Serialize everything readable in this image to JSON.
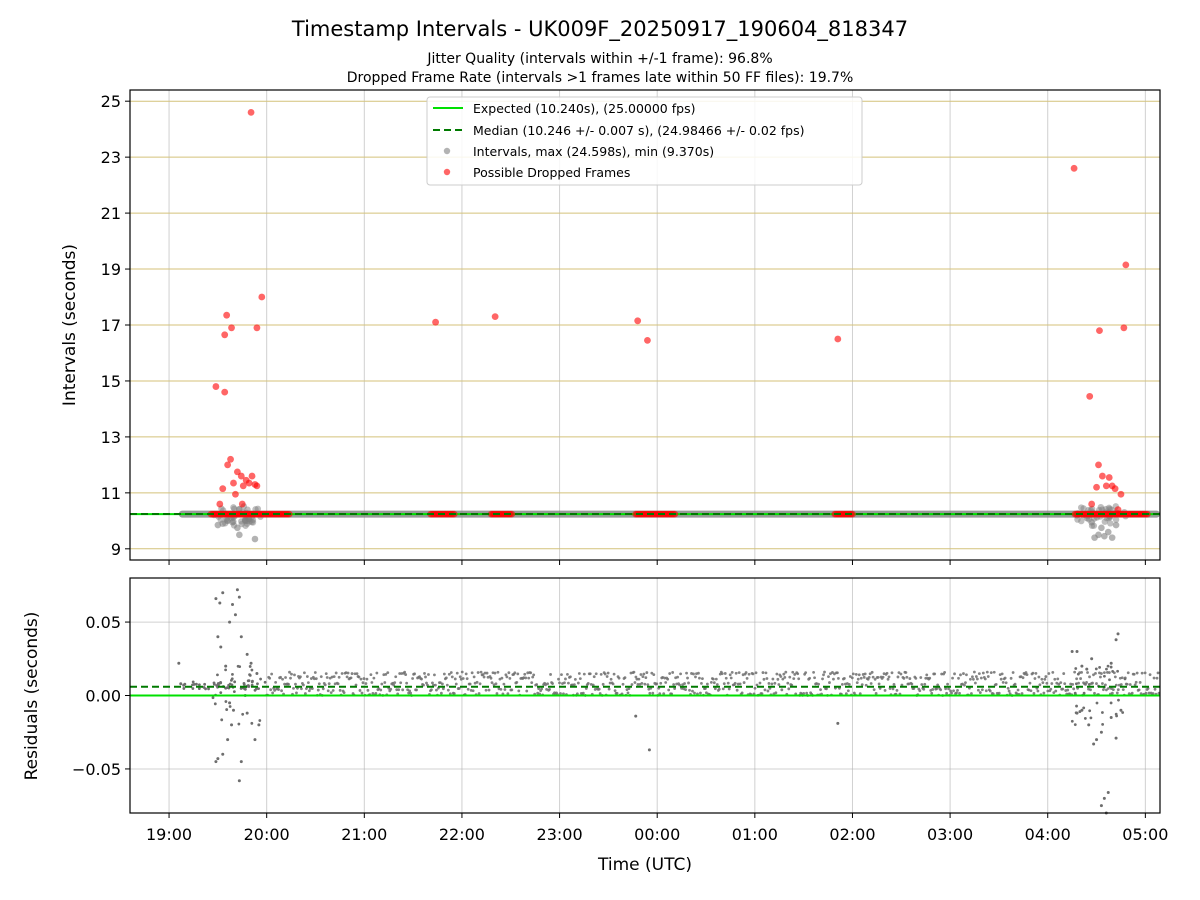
{
  "chart_data": {
    "title": "Timestamp Intervals - UK009F_20250917_190604_818347",
    "subtitle_lines": [
      "Jitter Quality (intervals within +/-1 frame): 96.8%",
      "Dropped Frame Rate (intervals >1 frames late within 50 FF files): 19.7%"
    ],
    "xlabel": "Time (UTC)",
    "x_tick_labels": [
      "19:00",
      "20:00",
      "21:00",
      "22:00",
      "23:00",
      "00:00",
      "01:00",
      "02:00",
      "03:00",
      "04:00",
      "05:00"
    ],
    "top_panel": {
      "type": "scatter",
      "ylabel": "Intervals (seconds)",
      "ylim": [
        8.6,
        25.4
      ],
      "y_ticks": [
        9,
        11,
        13,
        15,
        17,
        19,
        21,
        23,
        25
      ],
      "y_tick_labels": [
        "9",
        "11",
        "13",
        "15",
        "17",
        "19",
        "21",
        "23",
        "25"
      ],
      "horizontal_grid_color": "#d4c27a",
      "vertical_grid": true,
      "legend_position": "top-center",
      "legend": [
        {
          "label": "Expected (10.240s), (25.00000 fps)",
          "style": "solid-line",
          "color": "#00e000"
        },
        {
          "label": "Median (10.246 +/- 0.007 s), (24.98466 +/- 0.02 fps)",
          "style": "dashed-line",
          "color": "#007a00"
        },
        {
          "label": "Intervals, max (24.598s), min (9.370s)",
          "style": "marker",
          "color": "#808080"
        },
        {
          "label": "Possible Dropped Frames",
          "style": "marker",
          "color": "#ff0000"
        }
      ],
      "expected_value": 10.24,
      "median_value": 10.246,
      "normal_band_hours": [
        [
          19.1,
          29.15
        ]
      ],
      "normal_band_value": 10.24,
      "dropped_clusters": [
        {
          "x_range": [
            19.43,
            20.23
          ],
          "y": 10.24
        },
        {
          "x_range": [
            21.68,
            21.92
          ],
          "y": 10.24
        },
        {
          "x_range": [
            22.3,
            22.51
          ],
          "y": 10.24
        },
        {
          "x_range": [
            23.78,
            24.18
          ],
          "y": 10.24
        },
        {
          "x_range": [
            25.82,
            26.0
          ],
          "y": 10.24
        },
        {
          "x_range": [
            28.28,
            29.02
          ],
          "y": 10.24
        }
      ],
      "dropped_points": [
        {
          "x": 19.48,
          "y": 14.8
        },
        {
          "x": 19.57,
          "y": 14.6
        },
        {
          "x": 19.57,
          "y": 16.65
        },
        {
          "x": 19.59,
          "y": 17.35
        },
        {
          "x": 19.64,
          "y": 16.9
        },
        {
          "x": 19.84,
          "y": 24.6
        },
        {
          "x": 19.9,
          "y": 16.9
        },
        {
          "x": 19.95,
          "y": 18.0
        },
        {
          "x": 21.73,
          "y": 17.1
        },
        {
          "x": 22.34,
          "y": 17.3
        },
        {
          "x": 23.8,
          "y": 17.15
        },
        {
          "x": 23.9,
          "y": 16.45
        },
        {
          "x": 25.85,
          "y": 16.5
        },
        {
          "x": 28.27,
          "y": 22.6
        },
        {
          "x": 28.43,
          "y": 14.45
        },
        {
          "x": 28.53,
          "y": 16.8
        },
        {
          "x": 28.78,
          "y": 16.9
        },
        {
          "x": 28.8,
          "y": 19.15
        },
        {
          "x": 19.55,
          "y": 11.15
        },
        {
          "x": 19.6,
          "y": 12.0
        },
        {
          "x": 19.63,
          "y": 12.2
        },
        {
          "x": 19.66,
          "y": 11.35
        },
        {
          "x": 19.7,
          "y": 11.75
        },
        {
          "x": 19.74,
          "y": 11.6
        },
        {
          "x": 19.76,
          "y": 11.25
        },
        {
          "x": 19.79,
          "y": 11.45
        },
        {
          "x": 19.82,
          "y": 11.35
        },
        {
          "x": 19.85,
          "y": 11.6
        },
        {
          "x": 19.88,
          "y": 11.3
        },
        {
          "x": 19.9,
          "y": 11.25
        },
        {
          "x": 19.52,
          "y": 10.6
        },
        {
          "x": 19.75,
          "y": 10.6
        },
        {
          "x": 19.68,
          "y": 10.95
        },
        {
          "x": 28.45,
          "y": 10.6
        },
        {
          "x": 28.5,
          "y": 11.2
        },
        {
          "x": 28.52,
          "y": 12.0
        },
        {
          "x": 28.56,
          "y": 11.6
        },
        {
          "x": 28.6,
          "y": 11.25
        },
        {
          "x": 28.63,
          "y": 11.55
        },
        {
          "x": 28.66,
          "y": 11.25
        },
        {
          "x": 28.69,
          "y": 11.15
        },
        {
          "x": 28.72,
          "y": 10.4
        },
        {
          "x": 28.75,
          "y": 10.95
        }
      ],
      "gray_points": [
        {
          "x": 19.88,
          "y": 9.35
        },
        {
          "x": 19.72,
          "y": 9.5
        },
        {
          "x": 19.7,
          "y": 9.75
        },
        {
          "x": 19.65,
          "y": 9.95
        },
        {
          "x": 19.55,
          "y": 9.9
        },
        {
          "x": 19.5,
          "y": 9.85
        },
        {
          "x": 19.6,
          "y": 10.0
        },
        {
          "x": 19.78,
          "y": 10.0
        },
        {
          "x": 28.48,
          "y": 9.4
        },
        {
          "x": 28.52,
          "y": 9.5
        },
        {
          "x": 28.58,
          "y": 9.45
        },
        {
          "x": 28.62,
          "y": 9.6
        },
        {
          "x": 28.66,
          "y": 9.4
        },
        {
          "x": 28.55,
          "y": 9.75
        },
        {
          "x": 28.7,
          "y": 9.85
        },
        {
          "x": 28.45,
          "y": 9.95
        },
        {
          "x": 28.3,
          "y": 10.2
        },
        {
          "x": 28.4,
          "y": 10.1
        }
      ]
    },
    "bottom_panel": {
      "type": "scatter",
      "ylabel": "Residuals (seconds)",
      "ylim": [
        -0.08,
        0.08
      ],
      "y_ticks": [
        0.05,
        0.0,
        -0.05
      ],
      "y_tick_labels": [
        "0.05",
        "0.00",
        "−0.05"
      ],
      "expected_value": 0.0,
      "median_value": 0.006,
      "band_hours": [
        20.0,
        29.15
      ],
      "band_values": [
        0.001,
        0.004,
        0.008,
        0.012,
        0.015
      ],
      "scatter_points": [
        {
          "x": 19.1,
          "y": 0.022
        },
        {
          "x": 19.12,
          "y": 0.008
        },
        {
          "x": 19.15,
          "y": 0.007
        },
        {
          "x": 19.48,
          "y": 0.066
        },
        {
          "x": 19.52,
          "y": 0.063
        },
        {
          "x": 19.55,
          "y": 0.07
        },
        {
          "x": 19.5,
          "y": 0.04
        },
        {
          "x": 19.53,
          "y": 0.033
        },
        {
          "x": 19.58,
          "y": 0.02
        },
        {
          "x": 19.62,
          "y": 0.05
        },
        {
          "x": 19.65,
          "y": 0.062
        },
        {
          "x": 19.7,
          "y": 0.072
        },
        {
          "x": 19.72,
          "y": 0.067
        },
        {
          "x": 19.68,
          "y": 0.055
        },
        {
          "x": 19.74,
          "y": 0.04
        },
        {
          "x": 19.8,
          "y": 0.028
        },
        {
          "x": 19.84,
          "y": 0.022
        },
        {
          "x": 19.9,
          "y": 0.015
        },
        {
          "x": 19.48,
          "y": -0.045
        },
        {
          "x": 19.5,
          "y": -0.043
        },
        {
          "x": 19.55,
          "y": -0.04
        },
        {
          "x": 19.6,
          "y": -0.03
        },
        {
          "x": 19.64,
          "y": -0.02
        },
        {
          "x": 19.66,
          "y": -0.01
        },
        {
          "x": 19.72,
          "y": -0.058
        },
        {
          "x": 19.74,
          "y": -0.045
        },
        {
          "x": 19.8,
          "y": -0.012
        },
        {
          "x": 19.88,
          "y": -0.03
        },
        {
          "x": 19.92,
          "y": -0.02
        },
        {
          "x": 19.58,
          "y": 0.005
        },
        {
          "x": 19.62,
          "y": -0.005
        },
        {
          "x": 19.78,
          "y": 0.0
        },
        {
          "x": 23.78,
          "y": -0.014
        },
        {
          "x": 23.92,
          "y": -0.037
        },
        {
          "x": 25.85,
          "y": -0.019
        },
        {
          "x": 28.25,
          "y": 0.03
        },
        {
          "x": 28.3,
          "y": 0.03
        },
        {
          "x": 28.35,
          "y": 0.02
        },
        {
          "x": 28.4,
          "y": 0.018
        },
        {
          "x": 28.45,
          "y": 0.025
        },
        {
          "x": 28.72,
          "y": 0.042
        },
        {
          "x": 28.7,
          "y": 0.038
        },
        {
          "x": 28.65,
          "y": 0.022
        },
        {
          "x": 28.3,
          "y": -0.012
        },
        {
          "x": 28.35,
          "y": -0.01
        },
        {
          "x": 28.42,
          "y": -0.02
        },
        {
          "x": 28.47,
          "y": -0.033
        },
        {
          "x": 28.5,
          "y": -0.03
        },
        {
          "x": 28.55,
          "y": -0.025
        },
        {
          "x": 28.58,
          "y": -0.07
        },
        {
          "x": 28.55,
          "y": -0.075
        },
        {
          "x": 28.62,
          "y": -0.066
        },
        {
          "x": 28.6,
          "y": -0.08
        },
        {
          "x": 28.7,
          "y": -0.029
        },
        {
          "x": 28.65,
          "y": -0.015
        },
        {
          "x": 28.75,
          "y": -0.01
        }
      ]
    },
    "colors": {
      "expected": "#00e000",
      "median": "#007a00",
      "interval": "#808080",
      "dropped": "#ff0000",
      "residual": "#6e6e6e"
    }
  }
}
